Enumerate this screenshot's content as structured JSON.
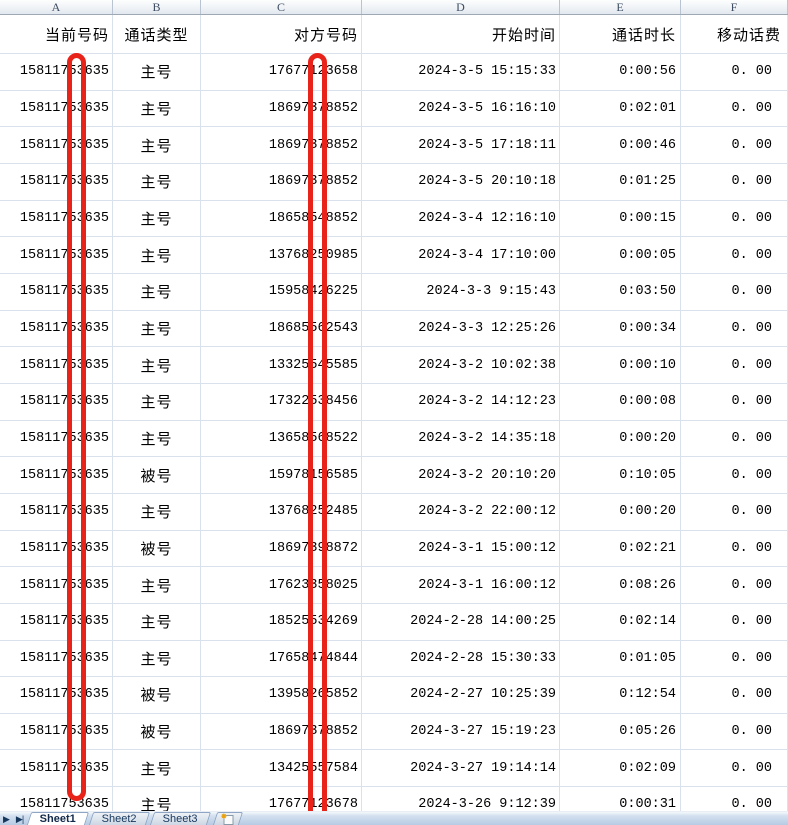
{
  "app": {
    "kind": "spreadsheet-call-log",
    "accent_red": "#e8231a",
    "gridline_color": "#d9e1ed"
  },
  "columns": [
    {
      "letter": "A",
      "header": "当前号码"
    },
    {
      "letter": "B",
      "header": "通话类型"
    },
    {
      "letter": "C",
      "header": "对方号码"
    },
    {
      "letter": "D",
      "header": "开始时间"
    },
    {
      "letter": "E",
      "header": "通话时长"
    },
    {
      "letter": "F",
      "header": "移动话费"
    }
  ],
  "rows": [
    {
      "a": "15811753635",
      "b": "主号",
      "c": "17677123658",
      "d": "2024-3-5 15:15:33",
      "e": "0:00:56",
      "f": "0. 00"
    },
    {
      "a": "15811753635",
      "b": "主号",
      "c": "18697378852",
      "d": "2024-3-5 16:16:10",
      "e": "0:02:01",
      "f": "0. 00"
    },
    {
      "a": "15811753635",
      "b": "主号",
      "c": "18697378852",
      "d": "2024-3-5 17:18:11",
      "e": "0:00:46",
      "f": "0. 00"
    },
    {
      "a": "15811753635",
      "b": "主号",
      "c": "18697378852",
      "d": "2024-3-5 20:10:18",
      "e": "0:01:25",
      "f": "0. 00"
    },
    {
      "a": "15811753635",
      "b": "主号",
      "c": "18658548852",
      "d": "2024-3-4 12:16:10",
      "e": "0:00:15",
      "f": "0. 00"
    },
    {
      "a": "15811753635",
      "b": "主号",
      "c": "13768250985",
      "d": "2024-3-4 17:10:00",
      "e": "0:00:05",
      "f": "0. 00"
    },
    {
      "a": "15811753635",
      "b": "主号",
      "c": "15958426225",
      "d": "2024-3-3 9:15:43",
      "e": "0:03:50",
      "f": "0. 00"
    },
    {
      "a": "15811753635",
      "b": "主号",
      "c": "18685562543",
      "d": "2024-3-3 12:25:26",
      "e": "0:00:34",
      "f": "0. 00"
    },
    {
      "a": "15811753635",
      "b": "主号",
      "c": "13325545585",
      "d": "2024-3-2 10:02:38",
      "e": "0:00:10",
      "f": "0. 00"
    },
    {
      "a": "15811753635",
      "b": "主号",
      "c": "17322538456",
      "d": "2024-3-2 14:12:23",
      "e": "0:00:08",
      "f": "0. 00"
    },
    {
      "a": "15811753635",
      "b": "主号",
      "c": "13658568522",
      "d": "2024-3-2 14:35:18",
      "e": "0:00:20",
      "f": "0. 00"
    },
    {
      "a": "15811753635",
      "b": "被号",
      "c": "15978156585",
      "d": "2024-3-2 20:10:20",
      "e": "0:10:05",
      "f": "0. 00"
    },
    {
      "a": "15811753635",
      "b": "主号",
      "c": "13768252485",
      "d": "2024-3-2 22:00:12",
      "e": "0:00:20",
      "f": "0. 00"
    },
    {
      "a": "15811753635",
      "b": "被号",
      "c": "18697398872",
      "d": "2024-3-1 15:00:12",
      "e": "0:02:21",
      "f": "0. 00"
    },
    {
      "a": "15811753635",
      "b": "主号",
      "c": "17623358025",
      "d": "2024-3-1 16:00:12",
      "e": "0:08:26",
      "f": "0. 00"
    },
    {
      "a": "15811753635",
      "b": "主号",
      "c": "18525534269",
      "d": "2024-2-28 14:00:25",
      "e": "0:02:14",
      "f": "0. 00"
    },
    {
      "a": "15811753635",
      "b": "主号",
      "c": "17658474844",
      "d": "2024-2-28 15:30:33",
      "e": "0:01:05",
      "f": "0. 00"
    },
    {
      "a": "15811753635",
      "b": "被号",
      "c": "13958265852",
      "d": "2024-2-27 10:25:39",
      "e": "0:12:54",
      "f": "0. 00"
    },
    {
      "a": "15811753635",
      "b": "被号",
      "c": "18697378852",
      "d": "2024-3-27 15:19:23",
      "e": "0:05:26",
      "f": "0. 00"
    },
    {
      "a": "15811753635",
      "b": "主号",
      "c": "13425557584",
      "d": "2024-3-27 19:14:14",
      "e": "0:02:09",
      "f": "0. 00"
    },
    {
      "a": "15811753635",
      "b": "主号",
      "c": "17677123678",
      "d": "2024-3-26 9:12:39",
      "e": "0:00:31",
      "f": "0. 00"
    }
  ],
  "annotations": {
    "color": "#e8231a",
    "items": [
      {
        "target": "column-A-digit",
        "shape": "capsule-outline"
      },
      {
        "target": "column-C-digit",
        "shape": "capsule-outline"
      }
    ]
  },
  "tabbar": {
    "nav": [
      {
        "name": "tab-scroll-next",
        "glyph": "▶"
      },
      {
        "name": "tab-scroll-last",
        "glyph": "▶|"
      }
    ],
    "tabs": [
      "Sheet1",
      "Sheet2",
      "Sheet3"
    ],
    "active_tab": "Sheet1",
    "insert_icon": "✸"
  }
}
